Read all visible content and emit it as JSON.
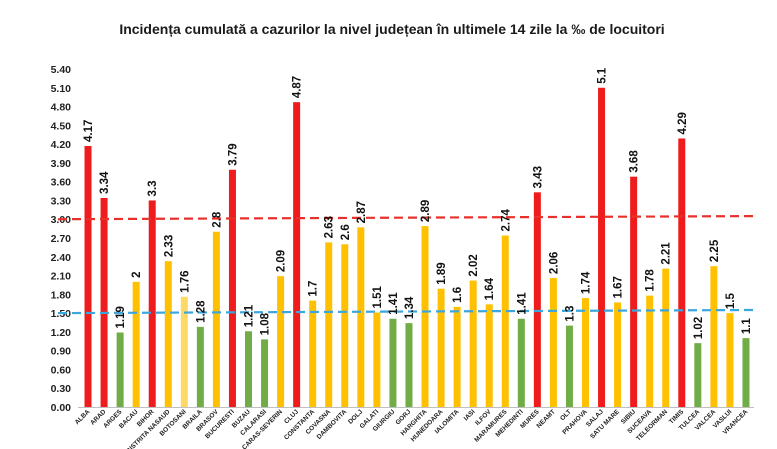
{
  "chart_data": {
    "type": "bar",
    "title": "Incidența cumulată a cazurilor la nivel județean în ultimele 14 zile la ‰ de locuitori",
    "xlabel": "",
    "ylabel": "",
    "ylim": [
      0,
      5.4
    ],
    "yticks": [
      "0.00",
      "0.30",
      "0.60",
      "0.90",
      "1.20",
      "1.50",
      "1.80",
      "2.10",
      "2.40",
      "2.70",
      "3.00",
      "3.30",
      "3.60",
      "3.90",
      "4.20",
      "4.50",
      "4.80",
      "5.10",
      "5.40"
    ],
    "grid": false,
    "legend": "none",
    "categories": [
      "ALBA",
      "ARAD",
      "ARGES",
      "BACAU",
      "BIHOR",
      "BISTRITA NASAUD",
      "BOTOSANI",
      "BRAILA",
      "BRASOV",
      "BUCURESTI",
      "BUZAU",
      "CALARASI",
      "CARAS-SEVERIN",
      "CLUJ",
      "CONSTANTA",
      "COVASNA",
      "DAMBOVITA",
      "DOLJ",
      "GALATI",
      "GIURGIU",
      "GORJ",
      "HARGHITA",
      "HUNEDOARA",
      "IALOMITA",
      "IASI",
      "ILFOV",
      "MARAMURES",
      "MEHEDINTI",
      "MURES",
      "NEAMT",
      "OLT",
      "PRAHOVA",
      "SALAJ",
      "SATU MARE",
      "SIBIU",
      "SUCEAVA",
      "TELEORMAN",
      "TIMIS",
      "TULCEA",
      "VALCEA",
      "VASLUI",
      "VRANCEA"
    ],
    "values": [
      4.17,
      3.34,
      1.19,
      2,
      3.3,
      2.33,
      1.76,
      1.28,
      2.8,
      3.79,
      1.21,
      1.08,
      2.09,
      4.87,
      1.7,
      2.63,
      2.6,
      2.87,
      1.51,
      1.41,
      1.34,
      2.89,
      1.89,
      1.6,
      2.02,
      1.64,
      2.74,
      1.41,
      3.43,
      2.06,
      1.3,
      1.74,
      5.1,
      1.67,
      3.68,
      1.78,
      2.21,
      4.29,
      1.02,
      2.25,
      1.5,
      1.1
    ],
    "value_labels": [
      "4.17",
      "3.34",
      "1.19",
      "2",
      "3.3",
      "2.33",
      "1.76",
      "1.28",
      "2.8",
      "3.79",
      "1.21",
      "1.08",
      "2.09",
      "4.87",
      "1.7",
      "2.63",
      "2.6",
      "2.87",
      "1.51",
      "1.41",
      "1.34",
      "2.89",
      "1.89",
      "1.6",
      "2.02",
      "1.64",
      "2.74",
      "1.41",
      "3.43",
      "2.06",
      "1.3",
      "1.74",
      "5.1",
      "1.67",
      "3.68",
      "1.78",
      "2.21",
      "4.29",
      "1.02",
      "2.25",
      "1.5",
      "1.1"
    ],
    "bar_colors": [
      "#ee1c1c",
      "#ee1c1c",
      "#70ad47",
      "#ffc000",
      "#ee1c1c",
      "#ffc000",
      "#ffd966",
      "#70ad47",
      "#ffc000",
      "#ee1c1c",
      "#70ad47",
      "#70ad47",
      "#ffc000",
      "#ee1c1c",
      "#ffc000",
      "#ffc000",
      "#ffc000",
      "#ffc000",
      "#ffc000",
      "#70ad47",
      "#70ad47",
      "#ffc000",
      "#ffc000",
      "#ffc000",
      "#ffc000",
      "#ffc000",
      "#ffc000",
      "#70ad47",
      "#ee1c1c",
      "#ffc000",
      "#70ad47",
      "#ffc000",
      "#ee1c1c",
      "#ffc000",
      "#ee1c1c",
      "#ffc000",
      "#ffc000",
      "#ee1c1c",
      "#70ad47",
      "#ffc000",
      "#ffc000",
      "#70ad47"
    ],
    "reference_lines": [
      {
        "y_start": 3.0,
        "y_end": 3.05,
        "color": "#e8312b",
        "style": "dashed"
      },
      {
        "y_start": 1.5,
        "y_end": 1.55,
        "color": "#3aa6dd",
        "style": "dashed"
      }
    ]
  }
}
